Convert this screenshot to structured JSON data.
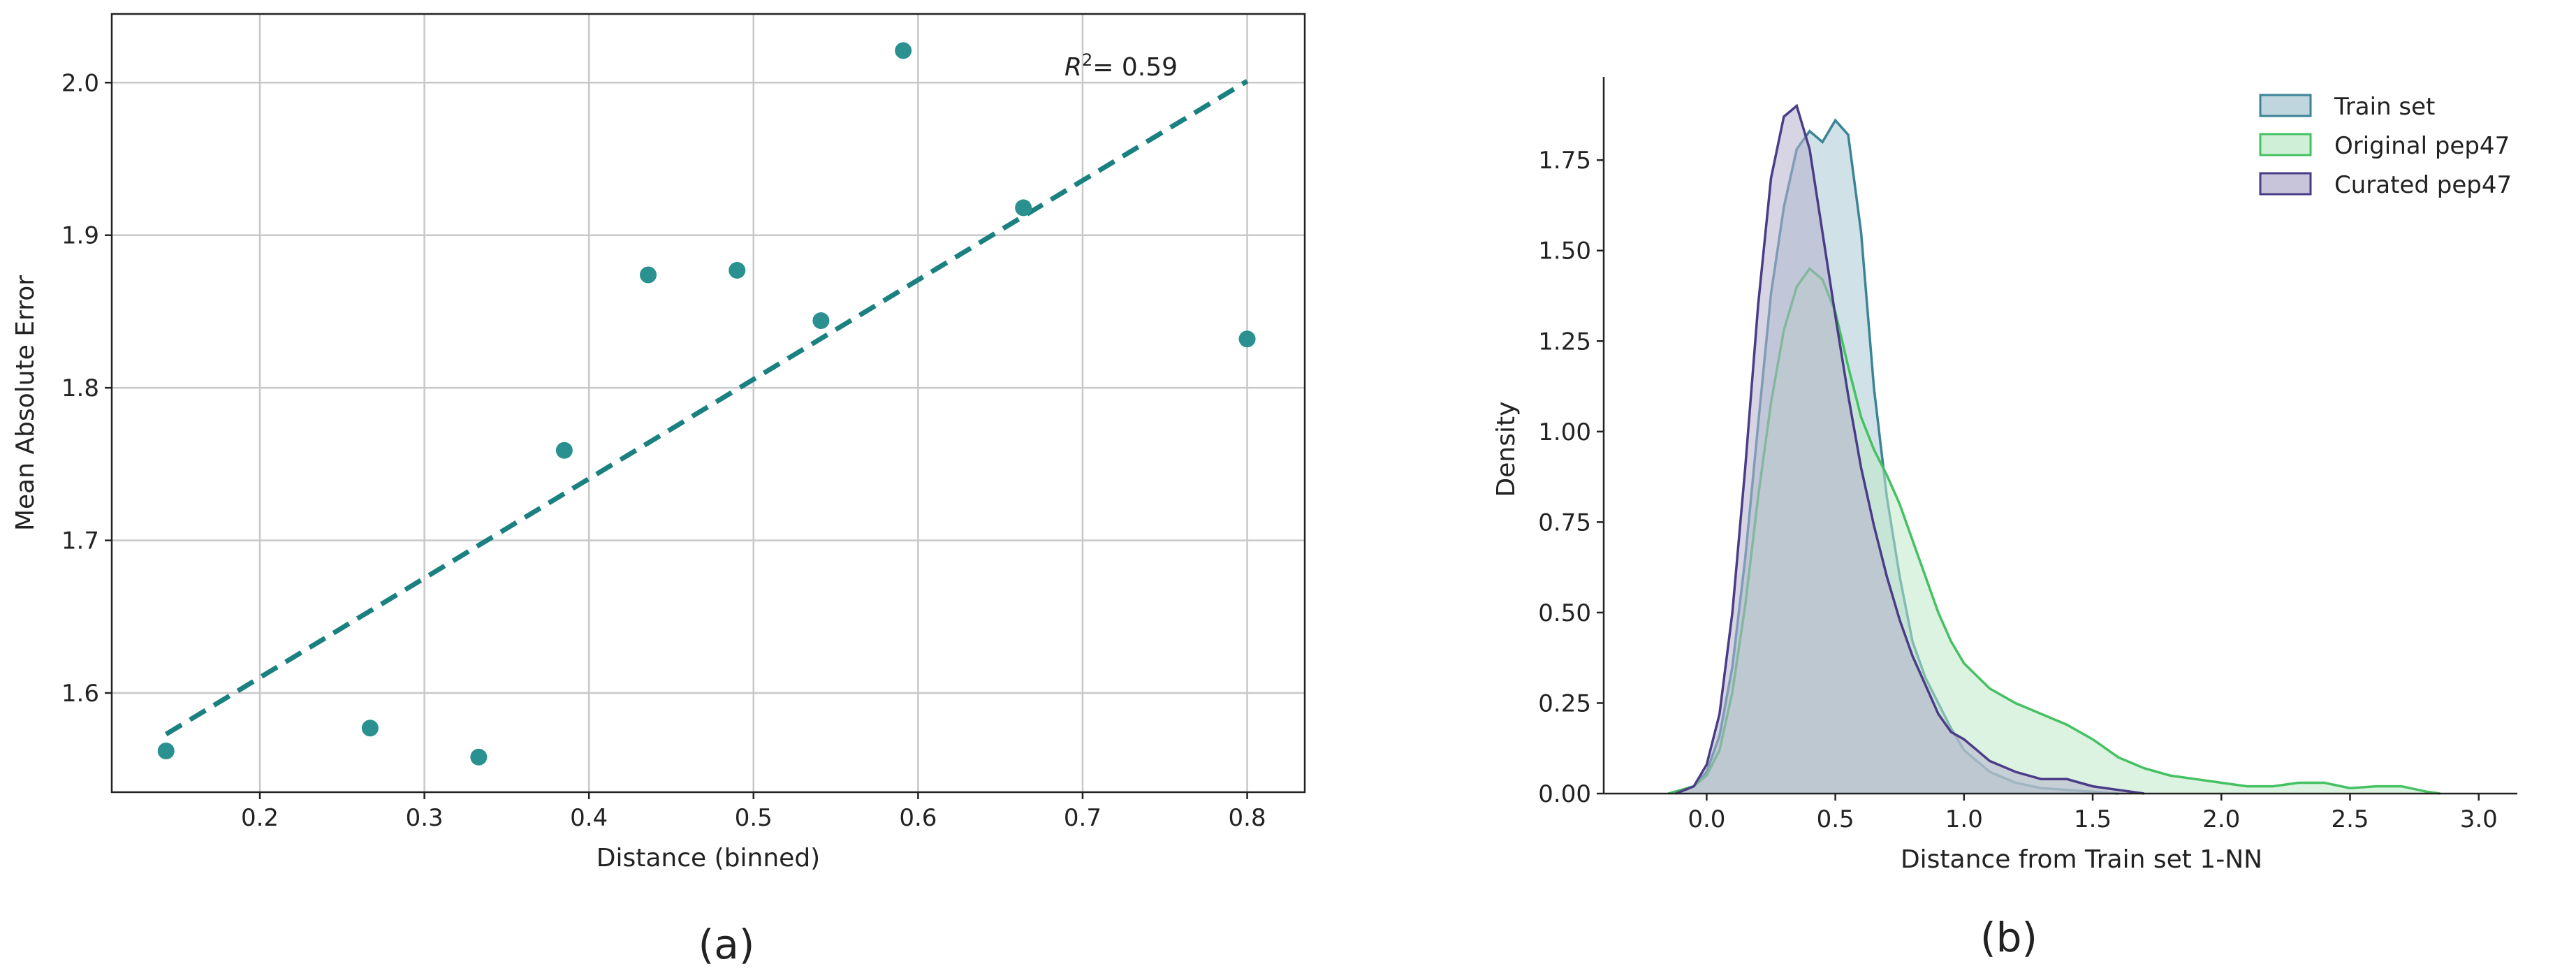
{
  "chart_data": [
    {
      "type": "scatter",
      "panel_label": "(a)",
      "xlabel": "Distance (binned)",
      "ylabel": "Mean Absolute Error",
      "xlim": [
        0.11,
        0.835
      ],
      "ylim": [
        1.535,
        2.045
      ],
      "xticks": [
        0.2,
        0.3,
        0.4,
        0.5,
        0.6,
        0.7,
        0.8
      ],
      "xtick_labels": [
        "0.2",
        "0.3",
        "0.4",
        "0.5",
        "0.6",
        "0.7",
        "0.8"
      ],
      "yticks": [
        1.6,
        1.7,
        1.8,
        1.9,
        2.0
      ],
      "ytick_labels": [
        "1.6",
        "1.7",
        "1.8",
        "1.9",
        "2.0"
      ],
      "grid": true,
      "color": "#2a9090",
      "points": [
        {
          "x": 0.143,
          "y": 1.562
        },
        {
          "x": 0.267,
          "y": 1.577
        },
        {
          "x": 0.333,
          "y": 1.558
        },
        {
          "x": 0.385,
          "y": 1.759
        },
        {
          "x": 0.436,
          "y": 1.874
        },
        {
          "x": 0.49,
          "y": 1.877
        },
        {
          "x": 0.541,
          "y": 1.844
        },
        {
          "x": 0.591,
          "y": 2.021
        },
        {
          "x": 0.664,
          "y": 1.918
        },
        {
          "x": 0.8,
          "y": 1.832
        }
      ],
      "fit_line": {
        "x": [
          0.143,
          0.8
        ],
        "y": [
          1.573,
          2.001
        ],
        "style": "dashed",
        "color": "#1a8080"
      },
      "annotation": {
        "R2_value": "= 0.59",
        "position": "top-right"
      }
    },
    {
      "type": "area",
      "panel_label": "(b)",
      "xlabel": "Distance from Train set 1-NN",
      "ylabel": "Density",
      "xlim": [
        -0.4,
        3.15
      ],
      "ylim": [
        0,
        1.98
      ],
      "xticks": [
        0.0,
        0.5,
        1.0,
        1.5,
        2.0,
        2.5,
        3.0
      ],
      "xtick_labels": [
        "0.0",
        "0.5",
        "1.0",
        "1.5",
        "2.0",
        "2.5",
        "3.0"
      ],
      "yticks": [
        0.0,
        0.25,
        0.5,
        0.75,
        1.0,
        1.25,
        1.5,
        1.75
      ],
      "ytick_labels": [
        "0.00",
        "0.25",
        "0.50",
        "0.75",
        "1.00",
        "1.25",
        "1.50",
        "1.75"
      ],
      "grid": false,
      "legend_position": "top-right",
      "series": [
        {
          "name": "Train set",
          "stroke": "#3b8496",
          "fill": "#a9c8d3",
          "x": [
            -0.12,
            -0.05,
            0.0,
            0.05,
            0.1,
            0.15,
            0.2,
            0.25,
            0.3,
            0.35,
            0.4,
            0.45,
            0.5,
            0.55,
            0.6,
            0.65,
            0.7,
            0.75,
            0.8,
            0.85,
            0.9,
            0.95,
            1.0,
            1.1,
            1.2,
            1.3,
            1.4,
            1.5,
            1.6
          ],
          "y": [
            0.0,
            0.02,
            0.06,
            0.16,
            0.35,
            0.65,
            1.02,
            1.38,
            1.62,
            1.78,
            1.83,
            1.8,
            1.86,
            1.82,
            1.55,
            1.12,
            0.82,
            0.6,
            0.42,
            0.32,
            0.25,
            0.18,
            0.12,
            0.06,
            0.03,
            0.015,
            0.01,
            0.005,
            0.0
          ]
        },
        {
          "name": "Original pep47",
          "stroke": "#45c162",
          "fill": "#bfe9c8",
          "x": [
            -0.15,
            -0.05,
            0.0,
            0.05,
            0.1,
            0.15,
            0.2,
            0.25,
            0.3,
            0.35,
            0.4,
            0.45,
            0.5,
            0.55,
            0.6,
            0.65,
            0.7,
            0.75,
            0.8,
            0.85,
            0.9,
            0.95,
            1.0,
            1.1,
            1.2,
            1.3,
            1.4,
            1.5,
            1.6,
            1.7,
            1.8,
            1.9,
            2.0,
            2.1,
            2.2,
            2.3,
            2.4,
            2.5,
            2.6,
            2.7,
            2.8,
            2.85
          ],
          "y": [
            0.0,
            0.02,
            0.05,
            0.12,
            0.28,
            0.52,
            0.82,
            1.08,
            1.28,
            1.4,
            1.45,
            1.42,
            1.33,
            1.18,
            1.04,
            0.95,
            0.88,
            0.8,
            0.7,
            0.6,
            0.5,
            0.42,
            0.36,
            0.29,
            0.25,
            0.22,
            0.19,
            0.15,
            0.1,
            0.07,
            0.05,
            0.04,
            0.03,
            0.02,
            0.02,
            0.03,
            0.03,
            0.015,
            0.02,
            0.02,
            0.005,
            0.0
          ]
        },
        {
          "name": "Curated pep47",
          "stroke": "#4b3c87",
          "fill": "#b6b1cd",
          "x": [
            -0.12,
            -0.05,
            0.0,
            0.05,
            0.1,
            0.15,
            0.2,
            0.25,
            0.3,
            0.35,
            0.4,
            0.45,
            0.5,
            0.55,
            0.6,
            0.65,
            0.7,
            0.75,
            0.8,
            0.85,
            0.9,
            0.95,
            1.0,
            1.05,
            1.1,
            1.2,
            1.3,
            1.4,
            1.5,
            1.6,
            1.7
          ],
          "y": [
            0.0,
            0.02,
            0.08,
            0.22,
            0.5,
            0.9,
            1.35,
            1.7,
            1.87,
            1.9,
            1.78,
            1.55,
            1.32,
            1.1,
            0.9,
            0.74,
            0.6,
            0.48,
            0.38,
            0.3,
            0.22,
            0.17,
            0.15,
            0.12,
            0.09,
            0.06,
            0.04,
            0.04,
            0.02,
            0.01,
            0.0
          ]
        }
      ]
    }
  ]
}
